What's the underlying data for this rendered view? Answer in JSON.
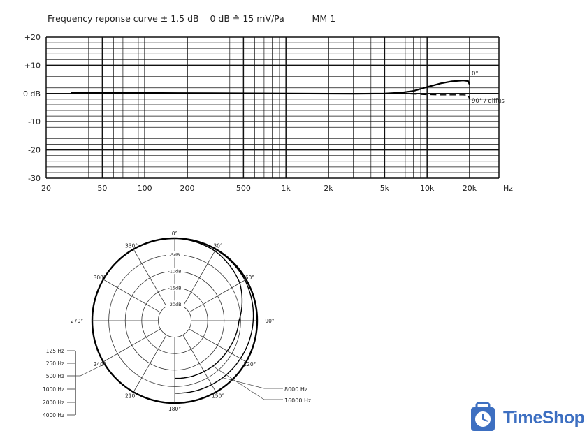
{
  "chart_data": [
    {
      "type": "line",
      "title": "Frequency reponse curve ± 1.5 dB    0 dB ≙ 15 mV/Pa          MM 1",
      "xscale": "log",
      "xlim": [
        20,
        32000
      ],
      "ylim": [
        -30,
        20
      ],
      "grid": true,
      "x_ticks": [
        {
          "v": 20,
          "label": "20"
        },
        {
          "v": 50,
          "label": "50"
        },
        {
          "v": 100,
          "label": "100"
        },
        {
          "v": 200,
          "label": "200"
        },
        {
          "v": 500,
          "label": "500"
        },
        {
          "v": 1000,
          "label": "1k"
        },
        {
          "v": 2000,
          "label": "2k"
        },
        {
          "v": 5000,
          "label": "5k"
        },
        {
          "v": 10000,
          "label": "10k"
        },
        {
          "v": 20000,
          "label": "20k"
        }
      ],
      "x_unit": "Hz",
      "y_ticks": [
        {
          "v": 20,
          "label": "+20"
        },
        {
          "v": 10,
          "label": "+10"
        },
        {
          "v": 0,
          "label": "0 dB"
        },
        {
          "v": -10,
          "label": "-10"
        },
        {
          "v": -20,
          "label": "-20"
        },
        {
          "v": -30,
          "label": "-30"
        }
      ],
      "series": [
        {
          "name": "0°",
          "style": "solid",
          "x": [
            30,
            100,
            300,
            1000,
            3000,
            5000,
            6500,
            8000,
            10000,
            12500,
            15000,
            18000,
            19500,
            20000
          ],
          "y": [
            0.3,
            0.2,
            0.1,
            0,
            -0.1,
            0,
            0.3,
            0.9,
            2.3,
            3.6,
            4.3,
            4.6,
            4.4,
            3.2
          ]
        },
        {
          "name": "90° / diffus",
          "style": "dashed",
          "x": [
            6500,
            8000,
            10000,
            12500,
            15000,
            18000,
            19500,
            20000
          ],
          "y": [
            0,
            -0.2,
            -0.4,
            -0.5,
            -0.5,
            -0.5,
            -0.6,
            -2
          ]
        }
      ]
    },
    {
      "type": "polar",
      "angle_labels": [
        "0°",
        "30°",
        "60°",
        "90°",
        "120°",
        "150°",
        "180°",
        "210°",
        "240°",
        "270°",
        "300°",
        "330°"
      ],
      "ring_labels": [
        "-5dB",
        "-10dB",
        "-15dB",
        "-20dB"
      ],
      "rlim": [
        -25,
        0
      ],
      "omni_group_label_target": "outer circle",
      "omni_frequencies": [
        "125 Hz",
        "250 Hz",
        "500 Hz",
        "1000 Hz",
        "2000 Hz",
        "4000 Hz"
      ],
      "series": [
        {
          "name": "8000 Hz",
          "angles": [
            0,
            30,
            60,
            90,
            120,
            150,
            180
          ],
          "db": [
            0,
            -0.1,
            -0.4,
            -1.2,
            -2,
            -2.6,
            -3
          ]
        },
        {
          "name": "16000 Hz",
          "angles": [
            0,
            30,
            60,
            90,
            120,
            150,
            180
          ],
          "db": [
            0,
            -0.6,
            -2.2,
            -5.5,
            -6.6,
            -7.2,
            -7.5
          ]
        }
      ]
    }
  ],
  "logo": {
    "text": "TimeShop",
    "color": "#3d6fc1"
  }
}
